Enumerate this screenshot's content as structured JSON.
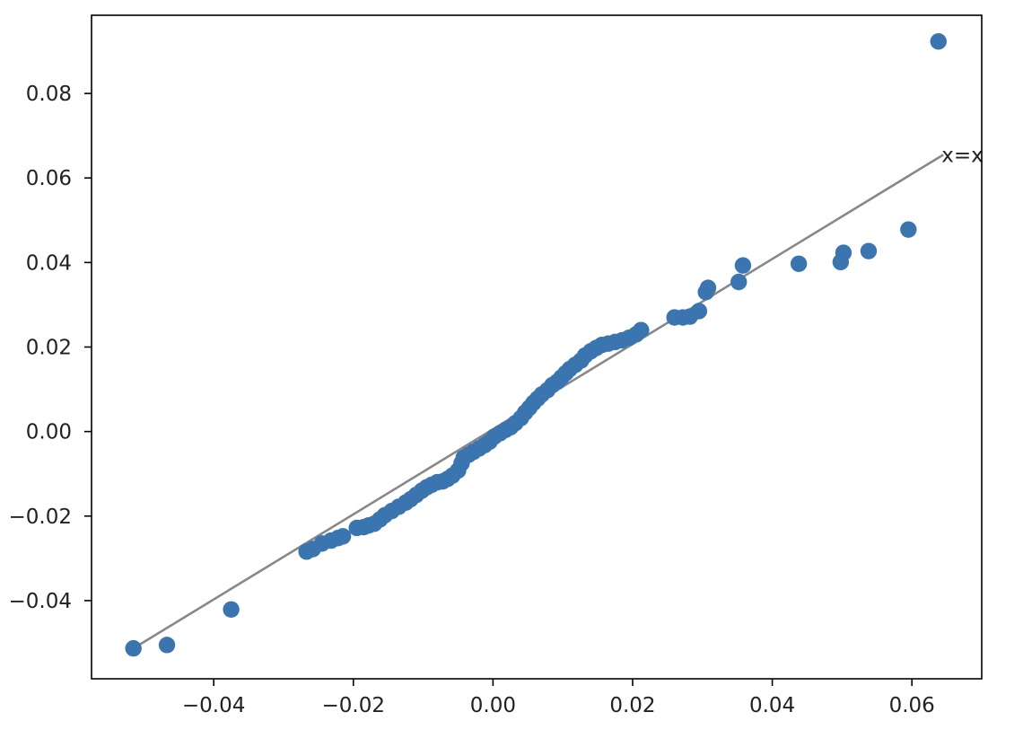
{
  "chart_data": {
    "type": "scatter",
    "title": "",
    "xlabel": "",
    "ylabel": "",
    "xlim": [
      -0.0575,
      0.07
    ],
    "ylim": [
      -0.0585,
      0.0985
    ],
    "grid": false,
    "marker_color": "#3a75b0",
    "reference_line_color": "#888888",
    "x_ticks": [
      {
        "value": -0.04,
        "label": "−0.04"
      },
      {
        "value": -0.02,
        "label": "−0.02"
      },
      {
        "value": 0.0,
        "label": "0.00"
      },
      {
        "value": 0.02,
        "label": "0.02"
      },
      {
        "value": 0.04,
        "label": "0.04"
      },
      {
        "value": 0.06,
        "label": "0.06"
      }
    ],
    "y_ticks": [
      {
        "value": -0.04,
        "label": "−0.04"
      },
      {
        "value": -0.02,
        "label": "−0.02"
      },
      {
        "value": 0.0,
        "label": "0.00"
      },
      {
        "value": 0.02,
        "label": "0.02"
      },
      {
        "value": 0.04,
        "label": "0.04"
      },
      {
        "value": 0.06,
        "label": "0.06"
      },
      {
        "value": 0.08,
        "label": "0.08"
      }
    ],
    "reference_line": {
      "label": "x=x",
      "from": [
        -0.0515,
        -0.0513
      ],
      "to": [
        0.0645,
        0.0655
      ]
    },
    "series": [
      {
        "points": [
          [
            -0.0515,
            -0.0513
          ],
          [
            -0.0467,
            -0.0505
          ],
          [
            -0.0375,
            -0.0421
          ],
          [
            -0.0267,
            -0.0284
          ],
          [
            -0.0258,
            -0.0278
          ],
          [
            -0.0245,
            -0.0265
          ],
          [
            -0.0232,
            -0.0258
          ],
          [
            -0.0222,
            -0.0252
          ],
          [
            -0.0215,
            -0.0248
          ],
          [
            -0.0195,
            -0.0228
          ],
          [
            -0.0185,
            -0.0226
          ],
          [
            -0.0178,
            -0.0222
          ],
          [
            -0.017,
            -0.0218
          ],
          [
            -0.0162,
            -0.0208
          ],
          [
            -0.0155,
            -0.0198
          ],
          [
            -0.0145,
            -0.0188
          ],
          [
            -0.0135,
            -0.0178
          ],
          [
            -0.0125,
            -0.0168
          ],
          [
            -0.0118,
            -0.016
          ],
          [
            -0.011,
            -0.015
          ],
          [
            -0.0102,
            -0.014
          ],
          [
            -0.0095,
            -0.0132
          ],
          [
            -0.0088,
            -0.0126
          ],
          [
            -0.008,
            -0.012
          ],
          [
            -0.0072,
            -0.0118
          ],
          [
            -0.0065,
            -0.0112
          ],
          [
            -0.0058,
            -0.0104
          ],
          [
            -0.005,
            -0.0092
          ],
          [
            -0.0045,
            -0.0075
          ],
          [
            -0.0042,
            -0.0062
          ],
          [
            -0.0035,
            -0.0055
          ],
          [
            -0.0028,
            -0.0048
          ],
          [
            -0.002,
            -0.004
          ],
          [
            -0.0012,
            -0.0032
          ],
          [
            -0.0005,
            -0.0024
          ],
          [
            0.0002,
            -0.0012
          ],
          [
            0.001,
            -0.0004
          ],
          [
            0.0018,
            0.0004
          ],
          [
            0.0025,
            0.001
          ],
          [
            0.0032,
            0.002
          ],
          [
            0.004,
            0.0032
          ],
          [
            0.0046,
            0.0045
          ],
          [
            0.0052,
            0.0056
          ],
          [
            0.0058,
            0.0068
          ],
          [
            0.0064,
            0.0078
          ],
          [
            0.007,
            0.0088
          ],
          [
            0.0078,
            0.0098
          ],
          [
            0.0085,
            0.011
          ],
          [
            0.0092,
            0.0118
          ],
          [
            0.0098,
            0.0128
          ],
          [
            0.0104,
            0.0138
          ],
          [
            0.011,
            0.0148
          ],
          [
            0.0118,
            0.0158
          ],
          [
            0.0126,
            0.0168
          ],
          [
            0.0132,
            0.018
          ],
          [
            0.014,
            0.019
          ],
          [
            0.0148,
            0.0198
          ],
          [
            0.0156,
            0.0205
          ],
          [
            0.0165,
            0.0208
          ],
          [
            0.0175,
            0.0212
          ],
          [
            0.0185,
            0.0216
          ],
          [
            0.0195,
            0.0222
          ],
          [
            0.0205,
            0.023
          ],
          [
            0.0212,
            0.024
          ],
          [
            0.026,
            0.027
          ],
          [
            0.0272,
            0.027
          ],
          [
            0.0282,
            0.0272
          ],
          [
            0.0295,
            0.0285
          ],
          [
            0.0305,
            0.033
          ],
          [
            0.0308,
            0.034
          ],
          [
            0.0352,
            0.0354
          ],
          [
            0.0358,
            0.0393
          ],
          [
            0.0438,
            0.0397
          ],
          [
            0.0498,
            0.0401
          ],
          [
            0.0502,
            0.0423
          ],
          [
            0.0538,
            0.0427
          ],
          [
            0.0595,
            0.0478
          ],
          [
            0.0638,
            0.0923
          ]
        ]
      }
    ]
  }
}
